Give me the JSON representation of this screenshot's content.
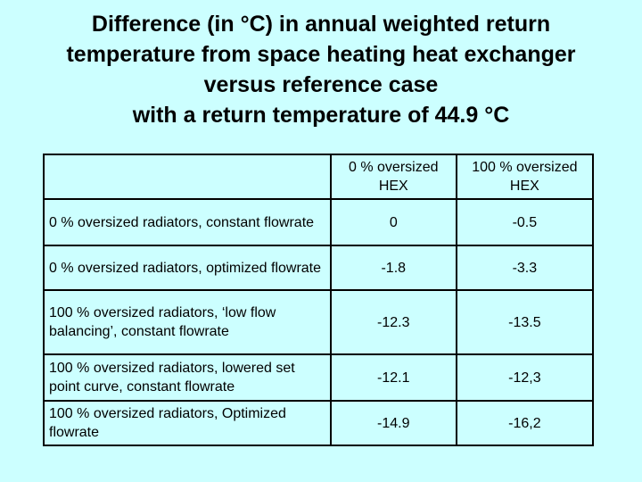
{
  "title": {
    "line1": "Difference (in °C) in annual weighted return",
    "line2": "temperature from space heating heat exchanger",
    "line3": "versus reference case",
    "line4": "with a return temperature of 44.9 °C"
  },
  "table": {
    "headers": {
      "col0": "",
      "col1": "0 % oversized HEX",
      "col2": "100 % oversized HEX"
    },
    "rows": [
      {
        "label": "0 % oversized radiators, constant flowrate",
        "hex0": "0",
        "hex100": "-0.5"
      },
      {
        "label": "0 % oversized radiators, optimized flowrate",
        "hex0": "-1.8",
        "hex100": "-3.3"
      },
      {
        "label": "100 % oversized radiators, ‘low flow balancing’, constant flowrate",
        "hex0": "-12.3",
        "hex100": "-13.5"
      },
      {
        "label": "100 % oversized radiators, lowered set point curve, constant flowrate",
        "hex0": "-12.1",
        "hex100": "-12,3"
      },
      {
        "label": "100 % oversized radiators, Optimized flowrate",
        "hex0": "-14.9",
        "hex100": "-16,2"
      }
    ]
  },
  "colors": {
    "background": "#ccffff",
    "text": "#000000",
    "border": "#000000"
  }
}
